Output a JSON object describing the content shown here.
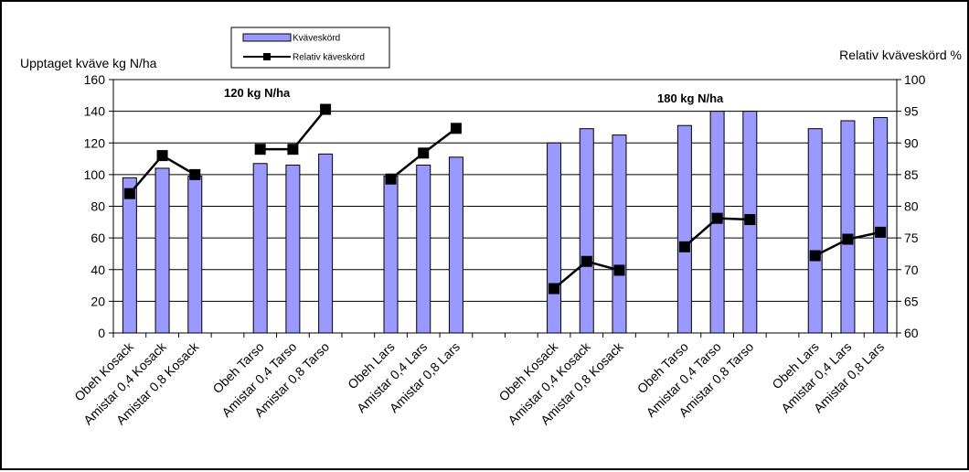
{
  "chart_data": {
    "type": "bar",
    "categories": [
      "Obeh Kosack",
      "Amistar 0,4 Kosack",
      "Amistar 0,8 Kosack",
      "Obeh Tarso",
      "Amistar 0,4 Tarso",
      "Amistar 0,8 Tarso",
      "Obeh Lars",
      "Amistar 0,4 Lars",
      "Amistar 0,8 Lars",
      "Obeh Kosack",
      "Amistar 0,4 Kosack",
      "Amistar 0,8 Kosack",
      "Obeh Tarso",
      "Amistar 0,4 Tarso",
      "Amistar 0,8 Tarso",
      "Obeh Lars",
      "Amistar 0,4 Lars",
      "Amistar 0,8 Lars"
    ],
    "series": [
      {
        "name": "Kväveskörd",
        "type": "bar",
        "axis": "left",
        "color": "#9999FF",
        "values": [
          98,
          104,
          99,
          107,
          106,
          113,
          99,
          106,
          111,
          120,
          129,
          125,
          131,
          140,
          140,
          129,
          134,
          136
        ]
      },
      {
        "name": "Relativ  käveskörd",
        "type": "line",
        "axis": "right",
        "color": "#000000",
        "values": [
          82,
          88,
          85,
          89,
          89,
          95.3,
          84.3,
          88.4,
          92.3,
          67,
          71.3,
          69.9,
          73.6,
          78.1,
          77.9,
          72.2,
          74.8,
          75.9
        ]
      }
    ],
    "ylabel": "Upptaget kväve kg N/ha",
    "ylim": [
      0,
      160
    ],
    "yticks": [
      0,
      20,
      40,
      60,
      80,
      100,
      120,
      140,
      160
    ],
    "y2label": "Relativ kväveskörd %",
    "y2lim": [
      60,
      100
    ],
    "y2ticks": [
      60,
      65,
      70,
      75,
      80,
      85,
      90,
      95,
      100
    ],
    "group_labels": [
      "120 kg N/ha",
      "180 kg N/ha"
    ],
    "legend_position": "top-center",
    "grid": "horizontal",
    "plot_background": "#ffffff"
  }
}
